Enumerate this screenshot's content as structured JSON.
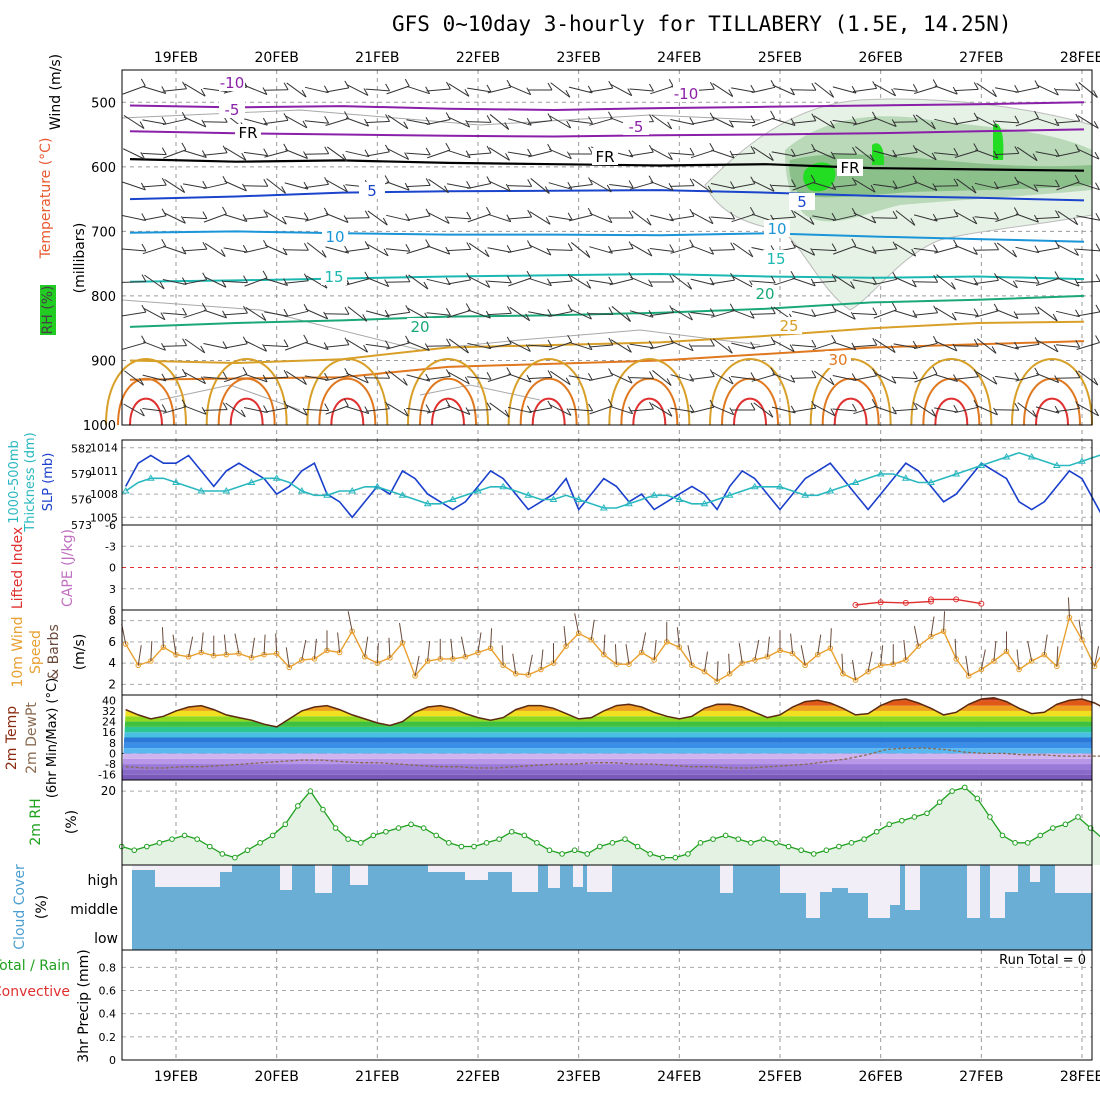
{
  "title": "GFS 0~10day 3-hourly for TILLABERY (1.5E, 14.25N)",
  "dates": [
    "19FEB",
    "20FEB",
    "21FEB",
    "22FEB",
    "23FEB",
    "24FEB",
    "25FEB",
    "26FEB",
    "27FEB",
    "28FEB"
  ],
  "chart_data": [
    {
      "type": "line",
      "panel": "pressure-cross-section",
      "ylabels": [
        "Wind (m/s)",
        "Temperature (°C)",
        "RH (%)",
        "(millibars)"
      ],
      "yticks": [
        500,
        600,
        700,
        800,
        900,
        1000
      ],
      "ylim": [
        1000,
        450
      ],
      "x": [
        "19FEB",
        "20FEB",
        "21FEB",
        "22FEB",
        "23FEB",
        "24FEB",
        "25FEB",
        "26FEB",
        "27FEB",
        "28FEB"
      ],
      "isotherm_labels": [
        {
          "value": "-10",
          "color": "#8a1fa8"
        },
        {
          "value": "-10",
          "color": "#8a1fa8"
        },
        {
          "value": "-5",
          "color": "#8a1fa8"
        },
        {
          "value": "-5",
          "color": "#8a1fa8"
        },
        {
          "value": "FR",
          "color": "#000000"
        },
        {
          "value": "FR",
          "color": "#000000"
        },
        {
          "value": "FR",
          "color": "#000000"
        },
        {
          "value": "5",
          "color": "#1a44cc"
        },
        {
          "value": "5",
          "color": "#1a44cc"
        },
        {
          "value": "10",
          "color": "#1a95d8"
        },
        {
          "value": "10",
          "color": "#1a95d8"
        },
        {
          "value": "15",
          "color": "#1ab8b0"
        },
        {
          "value": "15",
          "color": "#1ab8b0"
        },
        {
          "value": "20",
          "color": "#1aa878"
        },
        {
          "value": "20",
          "color": "#1aa878"
        },
        {
          "value": "25",
          "color": "#d8a028"
        },
        {
          "value": "30",
          "color": "#e07820"
        }
      ],
      "series": [
        {
          "value": -10,
          "color": "#8a1fa8",
          "pressure": [
            505,
            508,
            506,
            510,
            512,
            509,
            507,
            505,
            503,
            500
          ]
        },
        {
          "value": -5,
          "color": "#8a1fa8",
          "pressure": [
            545,
            548,
            550,
            552,
            553,
            551,
            550,
            548,
            545,
            542
          ]
        },
        {
          "value": 0,
          "color": "#000000",
          "pressure": [
            588,
            592,
            590,
            594,
            596,
            598,
            596,
            602,
            604,
            606
          ]
        },
        {
          "value": 5,
          "color": "#1a44cc",
          "pressure": [
            650,
            646,
            640,
            638,
            637,
            636,
            640,
            645,
            648,
            652
          ]
        },
        {
          "value": 10,
          "color": "#1a95d8",
          "pressure": [
            702,
            700,
            703,
            705,
            705,
            706,
            703,
            708,
            712,
            716
          ]
        },
        {
          "value": 15,
          "color": "#1ab8b0",
          "pressure": [
            778,
            776,
            773,
            770,
            768,
            766,
            770,
            772,
            770,
            774
          ]
        },
        {
          "value": 20,
          "color": "#1aa878",
          "pressure": [
            848,
            842,
            838,
            832,
            830,
            826,
            820,
            810,
            806,
            800
          ]
        },
        {
          "value": 25,
          "color": "#d8a028",
          "pressure": [
            900,
            904,
            898,
            880,
            876,
            872,
            862,
            850,
            842,
            840
          ]
        },
        {
          "value": 30,
          "color": "#e07820",
          "pressure": [
            930,
            928,
            926,
            910,
            905,
            900,
            890,
            880,
            875,
            870
          ]
        }
      ]
    },
    {
      "type": "line",
      "panel": "thickness-slp",
      "ylabels": [
        "1000-500mb",
        "Thickness (dm)",
        "SLP (mb)"
      ],
      "yticks_left": [
        573,
        576,
        579,
        582
      ],
      "yticks_right": [
        1005,
        1008,
        1011,
        1014
      ],
      "series": [
        {
          "name": "SLP (mb)",
          "color": "#1a3fcc",
          "axis": "right",
          "values": [
            1009,
            1012,
            1013,
            1012,
            1012,
            1013,
            1011,
            1009,
            1011,
            1012,
            1011,
            1010,
            1008,
            1009,
            1011,
            1012,
            1008,
            1007,
            1005,
            1007,
            1009,
            1008,
            1011,
            1010,
            1008,
            1007,
            1006,
            1007,
            1009,
            1011,
            1010,
            1008,
            1006,
            1007,
            1008,
            1010,
            1006,
            1008,
            1010,
            1009,
            1007,
            1008,
            1006,
            1007,
            1008,
            1009,
            1008,
            1006,
            1009,
            1011,
            1010,
            1008,
            1006,
            1008,
            1010,
            1011,
            1012,
            1010,
            1008,
            1006,
            1008,
            1010,
            1012,
            1011,
            1009,
            1007,
            1008,
            1010,
            1012,
            1011,
            1010,
            1007,
            1006,
            1007,
            1009,
            1011,
            1010,
            1007,
            1004,
            1005,
            1006,
            1007
          ]
        },
        {
          "name": "Thickness (dm)",
          "color": "#2ab8c0",
          "axis": "left",
          "values": [
            577,
            578,
            578.5,
            578.5,
            578,
            577.5,
            577,
            577,
            577,
            577.5,
            578,
            578.5,
            578.5,
            578,
            577,
            576.5,
            576.5,
            577,
            577,
            577.5,
            577.5,
            577,
            576.5,
            576,
            575.5,
            575.5,
            576,
            576.5,
            577,
            577.5,
            577.5,
            577,
            576.5,
            576,
            576,
            576.5,
            576,
            575.5,
            575,
            575,
            575.5,
            576,
            576.5,
            576.5,
            576,
            575.5,
            575.5,
            576,
            576.5,
            577,
            577.5,
            577.5,
            577.5,
            577,
            576.5,
            576.5,
            577,
            577.5,
            578,
            578.5,
            579,
            579,
            578.5,
            578,
            578,
            578.5,
            579,
            579.5,
            580,
            580.5,
            581,
            581.5,
            581,
            580.5,
            580,
            580,
            580.5,
            581,
            581.5,
            582,
            582,
            582,
            581.5,
            581
          ]
        }
      ]
    },
    {
      "type": "line",
      "panel": "lifted-index-cape",
      "ylabels": [
        "Lifted Index",
        "CAPE (J/kg)"
      ],
      "yticks": [
        "-6",
        "-3",
        "0",
        "3",
        "6"
      ],
      "ylim": [
        -6,
        6
      ],
      "series": [
        {
          "name": "Lifted Index",
          "color": "#e03030",
          "segments": [
            {
              "x": [
                "25FEB18",
                "26FEB00",
                "26FEB06",
                "26FEB12"
              ],
              "values": [
                5.3,
                4.9,
                5.0,
                4.8
              ]
            },
            {
              "x": [
                "26FEB12",
                "26FEB18",
                "27FEB00"
              ],
              "values": [
                4.5,
                4.5,
                5.1
              ]
            }
          ]
        }
      ]
    },
    {
      "type": "line",
      "panel": "wind",
      "ylabels": [
        "10m Wind",
        "Speed",
        "& Barbs",
        "(m/s)"
      ],
      "yticks": [
        2,
        4,
        6,
        8
      ],
      "ylim": [
        1,
        9
      ],
      "series": [
        {
          "name": "10m Wind Speed",
          "color": "#e8a030",
          "values": [
            5.8,
            3.8,
            4.2,
            5.5,
            4.8,
            4.6,
            5.0,
            4.7,
            4.8,
            4.9,
            4.5,
            4.8,
            4.9,
            3.6,
            4.3,
            4.4,
            5.2,
            5.0,
            7.0,
            4.6,
            4.0,
            4.5,
            5.9,
            2.8,
            4.2,
            4.4,
            4.4,
            4.6,
            5.0,
            5.4,
            3.8,
            3.0,
            2.9,
            3.4,
            4.0,
            5.6,
            6.8,
            6.2,
            4.8,
            3.9,
            3.9,
            5.0,
            4.3,
            6.0,
            5.5,
            3.8,
            3.2,
            2.3,
            3.0,
            4.0,
            4.3,
            4.6,
            5.2,
            4.9,
            3.8,
            4.8,
            5.4,
            3.0,
            2.4,
            3.2,
            3.8,
            3.9,
            4.3,
            5.6,
            6.5,
            7.0,
            4.4,
            2.8,
            3.4,
            4.2,
            5.1,
            3.4,
            4.2,
            4.8,
            3.7,
            8.3,
            6.2,
            3.7,
            5.6,
            4.5,
            3.5,
            4.2
          ]
        }
      ]
    },
    {
      "type": "area",
      "panel": "temperature",
      "ylabels": [
        "2m Temp",
        "2m DewPt",
        "(6hr Min/Max) (°C)"
      ],
      "yticks": [
        -16,
        -8,
        0,
        8,
        16,
        24,
        32,
        40
      ],
      "ylim": [
        -20,
        44
      ],
      "series": [
        {
          "name": "2m Temp",
          "color": "#7a2a10",
          "values": [
            33,
            29,
            26,
            28,
            32,
            35,
            36,
            33,
            29,
            27,
            25,
            22,
            20,
            26,
            32,
            35,
            36,
            33,
            29,
            26,
            23,
            21,
            24,
            31,
            35,
            36,
            34,
            30,
            27,
            25,
            27,
            33,
            36,
            36,
            34,
            30,
            26,
            27,
            32,
            36,
            37,
            35,
            31,
            28,
            26,
            28,
            34,
            37,
            37,
            35,
            31,
            27,
            29,
            35,
            39,
            40,
            38,
            34,
            29,
            30,
            36,
            40,
            41,
            38,
            34,
            29,
            31,
            37,
            41,
            42,
            39,
            34,
            30,
            31,
            37,
            40,
            41,
            38,
            33,
            28,
            27,
            26
          ]
        },
        {
          "name": "2m DewPt",
          "color": "#8a6a50",
          "dashed": true,
          "values": [
            -10,
            -11,
            -11,
            -10,
            -10,
            -9,
            -8,
            -7,
            -6,
            -5,
            -5,
            -6,
            -7,
            -7,
            -8,
            -9,
            -10,
            -10,
            -11,
            -11,
            -10,
            -9,
            -8,
            -8,
            -7,
            -7,
            -8,
            -8,
            -9,
            -10,
            -10,
            -11,
            -11,
            -10,
            -9,
            -8,
            -6,
            -4,
            -1,
            3,
            4,
            4,
            3,
            1,
            0,
            0,
            -1,
            -1,
            -2,
            -2,
            -2,
            -3,
            -3,
            -2
          ]
        }
      ]
    },
    {
      "type": "line",
      "panel": "rh",
      "ylabels": [
        "2m RH",
        "(%)"
      ],
      "yticks": [
        20
      ],
      "ylim": [
        0,
        23
      ],
      "series": [
        {
          "name": "2m RH",
          "color": "#20a020",
          "values": [
            5,
            4,
            5,
            6,
            7,
            8,
            7,
            5,
            3,
            2,
            4,
            6,
            8,
            11,
            16,
            20,
            15,
            10,
            7,
            6,
            8,
            9,
            10,
            11,
            10,
            8,
            6,
            5,
            5,
            6,
            7,
            9,
            8,
            6,
            4,
            3,
            4,
            3,
            5,
            6,
            7,
            5,
            3,
            2,
            2,
            3,
            6,
            7,
            8,
            7,
            6,
            7,
            6,
            5,
            4,
            3,
            4,
            5,
            6,
            7,
            9,
            11,
            12,
            13,
            14,
            17,
            20,
            21,
            18,
            13,
            8,
            6,
            6,
            8,
            10,
            11,
            13,
            10,
            7,
            6,
            5,
            7,
            8,
            8,
            10
          ]
        }
      ]
    },
    {
      "type": "bar",
      "panel": "cloud-cover",
      "ylabels": [
        "Cloud Cover",
        "(%)"
      ],
      "levels": [
        "high",
        "middle",
        "low"
      ]
    },
    {
      "type": "bar",
      "panel": "precip",
      "ylabels": [
        "Total / Rain",
        "Convective",
        "3hr Precip (mm)"
      ],
      "yticks": [
        "0",
        "0.2",
        "0.4",
        "0.6",
        "0.8"
      ],
      "ylim": [
        0,
        0.95
      ],
      "run_total": "Run Total = 0"
    }
  ]
}
